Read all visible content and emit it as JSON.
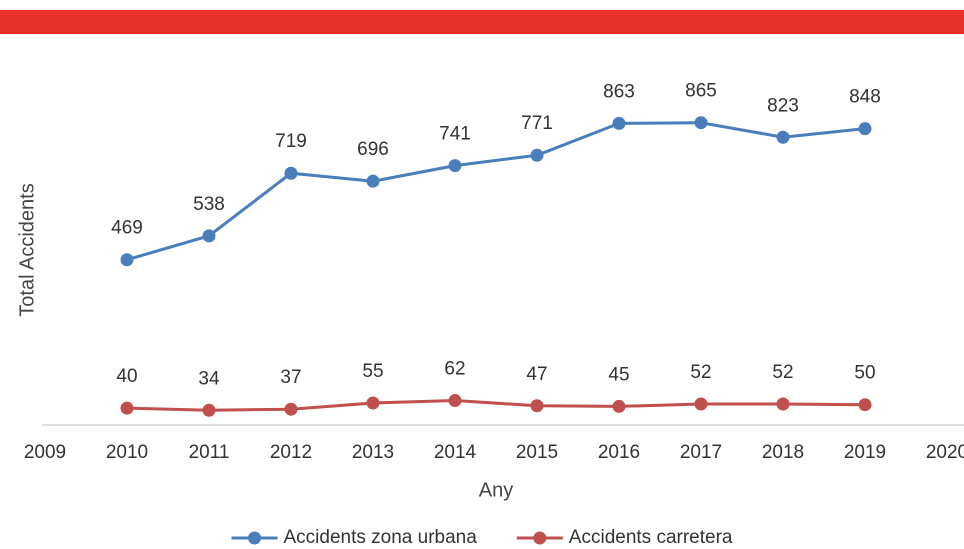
{
  "chart_data": {
    "type": "line",
    "x_label": "Any",
    "y_label": "Total Accidents",
    "x": [
      2010,
      2011,
      2012,
      2013,
      2014,
      2015,
      2016,
      2017,
      2018,
      2019
    ],
    "series": [
      {
        "name": "Accidents zona urbana",
        "color": "#4a7ebb",
        "values": [
          469,
          538,
          719,
          696,
          741,
          771,
          863,
          865,
          823,
          848
        ]
      },
      {
        "name": "Accidents carretera",
        "color": "#c0504d",
        "values": [
          40,
          34,
          37,
          55,
          62,
          47,
          45,
          52,
          52,
          50
        ]
      }
    ],
    "xlim": [
      2009,
      2020
    ],
    "xticks": [
      2009,
      2010,
      2011,
      2012,
      2013,
      2014,
      2015,
      2016,
      2017,
      2018,
      2019,
      2020
    ],
    "ylim": [
      0,
      1000
    ],
    "grid": false,
    "legend": "bottom"
  }
}
